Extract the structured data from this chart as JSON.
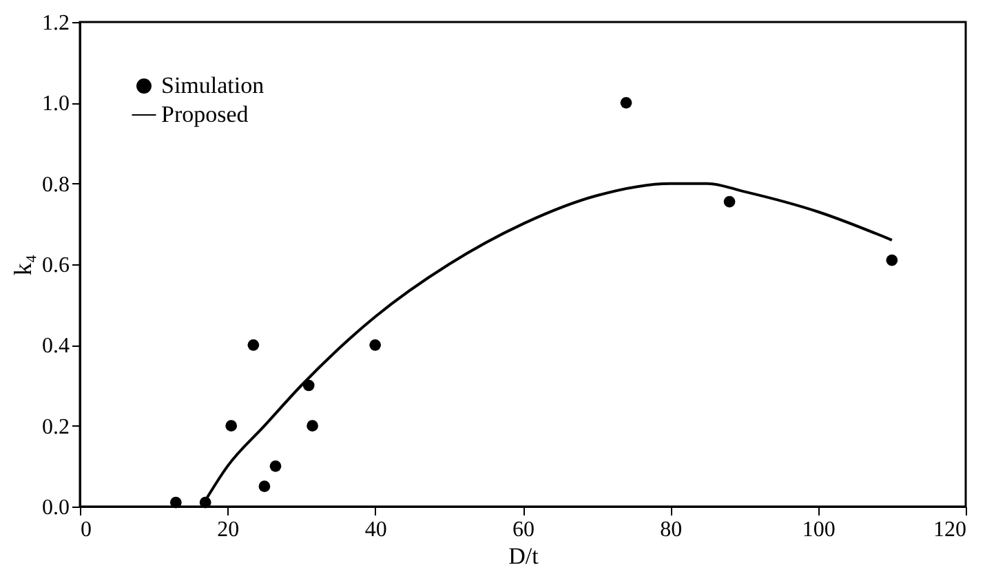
{
  "chart_data": {
    "type": "scatter",
    "xlabel": "D/t",
    "ylabel": "k₄",
    "xlim": [
      0,
      120
    ],
    "xticks": [
      0,
      20,
      40,
      60,
      80,
      100,
      120
    ],
    "ylim": [
      0,
      1.2
    ],
    "yticks": [
      {
        "value": 0,
        "label": "0.0"
      },
      0.2,
      0.4,
      0.6,
      0.8,
      {
        "value": 1,
        "label": "1.0"
      },
      1.2
    ],
    "legend": "top left",
    "grid": false,
    "series": [
      {
        "name": "Simulation",
        "marker": "circle",
        "color": "#000000",
        "x": [
          13,
          17,
          20.5,
          23.5,
          25,
          26.5,
          31,
          31.5,
          40,
          74,
          88,
          110
        ],
        "values": [
          0.01,
          0.01,
          0.2,
          0.4,
          0.05,
          0.1,
          0.3,
          0.2,
          0.4,
          1.0,
          0.755,
          0.61
        ]
      },
      {
        "name": "Proposed",
        "type": "line",
        "line_style": "solid",
        "color": "#000000",
        "x": [
          16.5,
          20,
          25,
          30,
          35,
          40,
          50,
          60,
          70,
          80,
          85,
          90,
          100,
          110
        ],
        "values": [
          0,
          0.1,
          0.2,
          0.3,
          0.39,
          0.47,
          0.6,
          0.7,
          0.77,
          0.8,
          0.8,
          0.78,
          0.73,
          0.66
        ]
      }
    ]
  }
}
